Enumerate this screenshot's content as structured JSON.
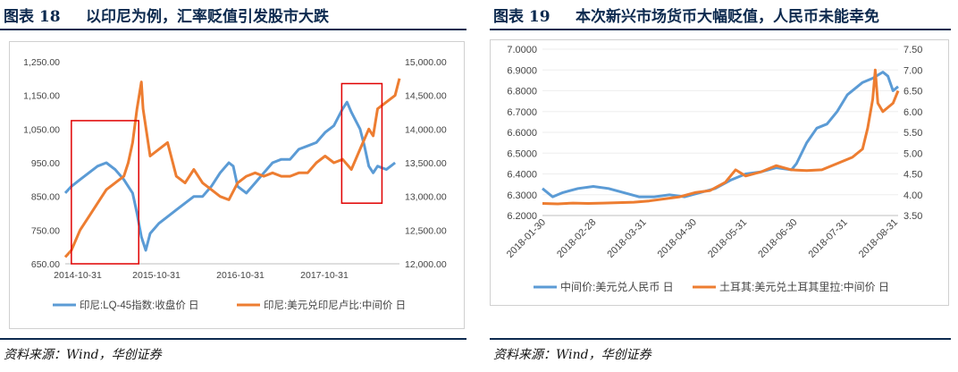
{
  "left": {
    "fig_no": "图表 18",
    "title": "以印尼为例，汇率贬值引发股市大跌",
    "source": "资料来源：Wind，华创证券"
  },
  "right": {
    "fig_no": "图表 19",
    "title": "本次新兴市场货币大幅贬值，人民币未能幸免",
    "source": "资料来源：Wind，华创证券"
  },
  "colors": {
    "blue": "#5b9bd5",
    "orange": "#ed7d31",
    "frame": "#e00000",
    "title": "#0d2a4f"
  },
  "chart_data": [
    {
      "type": "line",
      "x_tick_labels": [
        "2014-10-31",
        "2015-10-31",
        "2016-10-31",
        "2017-10-31"
      ],
      "y_left_ticks": [
        "1,250.00",
        "1,150.00",
        "1,050.00",
        "950.00",
        "850.00",
        "750.00",
        "650.00"
      ],
      "y_right_ticks": [
        "15,000.00",
        "14,500.00",
        "14,000.00",
        "13,500.00",
        "13,000.00",
        "12,500.00",
        "12,000.00"
      ],
      "ylim_left": [
        650,
        1250
      ],
      "ylim_right": [
        12000,
        15000
      ],
      "xlim": [
        2014.83,
        2018.65
      ],
      "series": [
        {
          "name": "印尼:LQ-45指数:收盘价 日",
          "axis": "left",
          "points": [
            [
              2014.83,
              860
            ],
            [
              2014.9,
              880
            ],
            [
              2015.0,
              900
            ],
            [
              2015.1,
              920
            ],
            [
              2015.2,
              940
            ],
            [
              2015.3,
              950
            ],
            [
              2015.4,
              930
            ],
            [
              2015.5,
              900
            ],
            [
              2015.55,
              880
            ],
            [
              2015.6,
              860
            ],
            [
              2015.65,
              800
            ],
            [
              2015.7,
              730
            ],
            [
              2015.75,
              690
            ],
            [
              2015.8,
              740
            ],
            [
              2015.9,
              770
            ],
            [
              2016.0,
              790
            ],
            [
              2016.1,
              810
            ],
            [
              2016.2,
              830
            ],
            [
              2016.3,
              850
            ],
            [
              2016.4,
              850
            ],
            [
              2016.5,
              880
            ],
            [
              2016.6,
              920
            ],
            [
              2016.7,
              950
            ],
            [
              2016.75,
              940
            ],
            [
              2016.8,
              880
            ],
            [
              2016.9,
              860
            ],
            [
              2017.0,
              890
            ],
            [
              2017.1,
              920
            ],
            [
              2017.2,
              950
            ],
            [
              2017.3,
              960
            ],
            [
              2017.4,
              960
            ],
            [
              2017.5,
              990
            ],
            [
              2017.6,
              1000
            ],
            [
              2017.7,
              1010
            ],
            [
              2017.8,
              1040
            ],
            [
              2017.9,
              1060
            ],
            [
              2018.0,
              1110
            ],
            [
              2018.05,
              1130
            ],
            [
              2018.1,
              1100
            ],
            [
              2018.2,
              1050
            ],
            [
              2018.25,
              1000
            ],
            [
              2018.3,
              940
            ],
            [
              2018.35,
              920
            ],
            [
              2018.4,
              940
            ],
            [
              2018.5,
              930
            ],
            [
              2018.55,
              940
            ],
            [
              2018.6,
              950
            ]
          ]
        },
        {
          "name": "印尼:美元兑印尼卢比:中间价 日",
          "axis": "right",
          "points": [
            [
              2014.83,
              12100
            ],
            [
              2014.9,
              12200
            ],
            [
              2015.0,
              12500
            ],
            [
              2015.1,
              12700
            ],
            [
              2015.2,
              12900
            ],
            [
              2015.3,
              13100
            ],
            [
              2015.4,
              13200
            ],
            [
              2015.5,
              13300
            ],
            [
              2015.55,
              13500
            ],
            [
              2015.6,
              13800
            ],
            [
              2015.65,
              14300
            ],
            [
              2015.7,
              14700
            ],
            [
              2015.72,
              14300
            ],
            [
              2015.8,
              13600
            ],
            [
              2015.9,
              13700
            ],
            [
              2016.0,
              13800
            ],
            [
              2016.1,
              13300
            ],
            [
              2016.2,
              13200
            ],
            [
              2016.3,
              13400
            ],
            [
              2016.4,
              13200
            ],
            [
              2016.5,
              13100
            ],
            [
              2016.6,
              13000
            ],
            [
              2016.7,
              12950
            ],
            [
              2016.8,
              13200
            ],
            [
              2016.9,
              13300
            ],
            [
              2017.0,
              13350
            ],
            [
              2017.1,
              13300
            ],
            [
              2017.2,
              13350
            ],
            [
              2017.3,
              13300
            ],
            [
              2017.4,
              13300
            ],
            [
              2017.5,
              13350
            ],
            [
              2017.6,
              13350
            ],
            [
              2017.7,
              13500
            ],
            [
              2017.8,
              13600
            ],
            [
              2017.9,
              13500
            ],
            [
              2018.0,
              13550
            ],
            [
              2018.1,
              13400
            ],
            [
              2018.2,
              13700
            ],
            [
              2018.3,
              14000
            ],
            [
              2018.35,
              13900
            ],
            [
              2018.4,
              14300
            ],
            [
              2018.5,
              14400
            ],
            [
              2018.6,
              14500
            ],
            [
              2018.65,
              14750
            ]
          ]
        }
      ],
      "highlight_boxes": [
        {
          "x": [
            2014.9,
            2015.67
          ],
          "y": [
            650,
            1075
          ]
        },
        {
          "x": [
            2017.99,
            2018.45
          ],
          "y": [
            830,
            1185
          ]
        }
      ],
      "legend_position": "bottom"
    },
    {
      "type": "line",
      "x_tick_labels": [
        "2018-01-30",
        "2018-02-28",
        "2018-03-31",
        "2018-04-30",
        "2018-05-31",
        "2018-06-30",
        "2018-07-31",
        "2018-08-31"
      ],
      "y_left_ticks": [
        "7.0000",
        "6.9000",
        "6.8000",
        "6.7000",
        "6.6000",
        "6.5000",
        "6.4000",
        "6.3000",
        "6.2000"
      ],
      "y_right_ticks": [
        "7.50",
        "7.00",
        "6.50",
        "6.00",
        "5.50",
        "5.00",
        "4.50",
        "4.00",
        "3.50"
      ],
      "ylim_left": [
        6.2,
        7.0
      ],
      "ylim_right": [
        3.5,
        7.5
      ],
      "xlim": [
        0,
        7
      ],
      "series": [
        {
          "name": "中间价:美元兑人民币 日",
          "axis": "left",
          "points": [
            [
              0,
              6.33
            ],
            [
              0.2,
              6.29
            ],
            [
              0.4,
              6.31
            ],
            [
              0.7,
              6.33
            ],
            [
              1.0,
              6.34
            ],
            [
              1.3,
              6.33
            ],
            [
              1.6,
              6.31
            ],
            [
              1.9,
              6.29
            ],
            [
              2.2,
              6.29
            ],
            [
              2.5,
              6.3
            ],
            [
              2.8,
              6.29
            ],
            [
              3.1,
              6.31
            ],
            [
              3.4,
              6.33
            ],
            [
              3.7,
              6.37
            ],
            [
              4.0,
              6.4
            ],
            [
              4.3,
              6.41
            ],
            [
              4.6,
              6.43
            ],
            [
              4.9,
              6.42
            ],
            [
              5.0,
              6.45
            ],
            [
              5.2,
              6.55
            ],
            [
              5.4,
              6.62
            ],
            [
              5.6,
              6.64
            ],
            [
              5.8,
              6.7
            ],
            [
              6.0,
              6.78
            ],
            [
              6.3,
              6.84
            ],
            [
              6.5,
              6.86
            ],
            [
              6.7,
              6.89
            ],
            [
              6.8,
              6.87
            ],
            [
              6.9,
              6.8
            ],
            [
              7.0,
              6.82
            ]
          ]
        },
        {
          "name": "土耳其:美元兑土耳其里拉:中间价 日",
          "axis": "right",
          "points": [
            [
              0,
              3.79
            ],
            [
              0.3,
              3.78
            ],
            [
              0.6,
              3.8
            ],
            [
              0.9,
              3.79
            ],
            [
              1.2,
              3.8
            ],
            [
              1.5,
              3.81
            ],
            [
              1.8,
              3.82
            ],
            [
              2.1,
              3.85
            ],
            [
              2.4,
              3.9
            ],
            [
              2.7,
              3.95
            ],
            [
              3.0,
              4.05
            ],
            [
              3.3,
              4.1
            ],
            [
              3.6,
              4.3
            ],
            [
              3.8,
              4.6
            ],
            [
              4.0,
              4.45
            ],
            [
              4.3,
              4.55
            ],
            [
              4.6,
              4.7
            ],
            [
              4.9,
              4.6
            ],
            [
              5.2,
              4.58
            ],
            [
              5.5,
              4.6
            ],
            [
              5.8,
              4.75
            ],
            [
              6.1,
              4.9
            ],
            [
              6.3,
              5.1
            ],
            [
              6.4,
              5.6
            ],
            [
              6.5,
              6.3
            ],
            [
              6.55,
              7.0
            ],
            [
              6.6,
              6.2
            ],
            [
              6.7,
              6.0
            ],
            [
              6.8,
              6.1
            ],
            [
              6.9,
              6.2
            ],
            [
              7.0,
              6.5
            ]
          ]
        }
      ],
      "legend_position": "bottom"
    }
  ]
}
